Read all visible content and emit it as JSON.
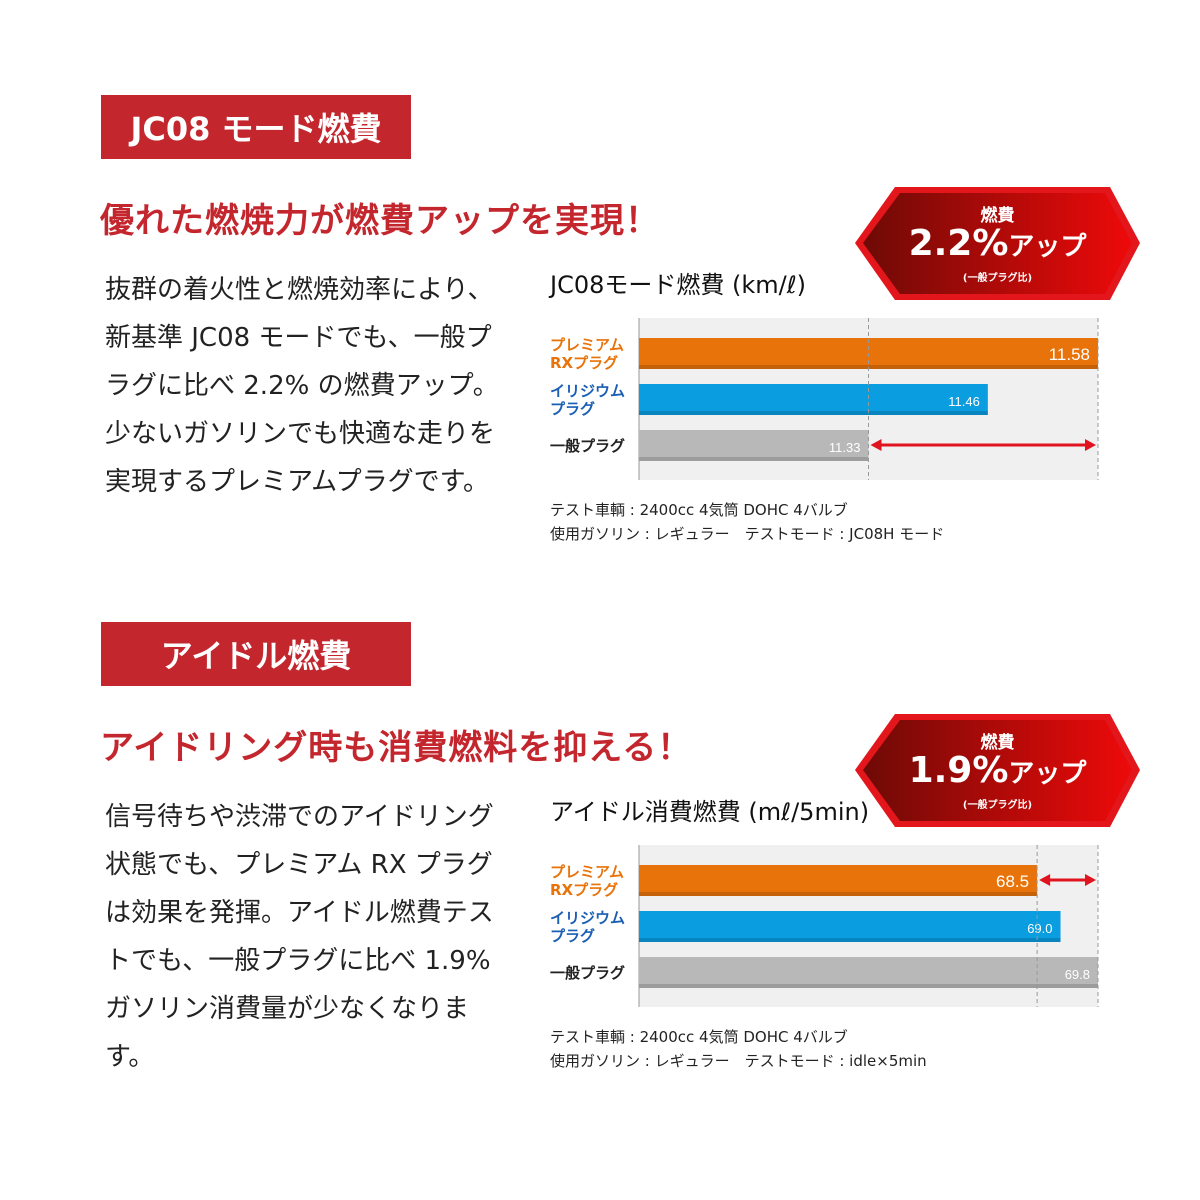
{
  "colors": {
    "accent": "#c4262e",
    "premium": "#e8730a",
    "iridium": "#0a9de0",
    "standard": "#b8b8b8",
    "arrow": "#e0141e"
  },
  "sections": [
    {
      "tag": "JC08 モード燃費",
      "headline": "優れた燃焼力が燃費アップを実現！",
      "body": "抜群の着火性と燃焼効率により、新基準 JC08 モードでも、一般プラグに比べ 2.2% の燃費アップ。少ないガソリンでも快適な走りを実現するプレミアムプラグです。",
      "badge": {
        "top": "燃費",
        "value": "2.2%",
        "suffix": "アップ",
        "sub": "(一般プラグ比)"
      },
      "notes": [
        "テスト車輌 : 2400cc 4気筒 DOHC 4バルブ",
        "使用ガソリン : レギュラー　テストモード : JC08H モード"
      ]
    },
    {
      "tag": "アイドル燃費",
      "headline": "アイドリング時も消費燃料を抑える！",
      "body": "信号待ちや渋滞でのアイドリング状態でも、プレミアム RX プラグは効果を発揮。アイドル燃費テストでも、一般プラグに比べ 1.9% ガソリン消費量が少なくなります。",
      "badge": {
        "top": "燃費",
        "value": "1.9%",
        "suffix": "アップ",
        "sub": "(一般プラグ比)"
      },
      "notes": [
        "テスト車輌 : 2400cc 4気筒 DOHC 4バルブ",
        "使用ガソリン : レギュラー　テストモード : idle×5min"
      ]
    }
  ],
  "chart_data": [
    {
      "type": "bar",
      "orientation": "horizontal",
      "title": "JC08モード燃費 (km/ℓ)",
      "categories": [
        "プレミアム\nRXプラグ",
        "イリジウム\nプラグ",
        "一般プラグ"
      ],
      "values": [
        11.58,
        11.46,
        11.33
      ],
      "labels": [
        "11.58",
        "11.46",
        "11.33"
      ],
      "xlim": [
        11.08,
        11.58
      ],
      "reference": 11.33,
      "arrow": [
        11.33,
        11.58
      ],
      "grid": "dashed reference lines"
    },
    {
      "type": "bar",
      "orientation": "horizontal",
      "title": "アイドル消費燃費 (mℓ/5min)",
      "categories": [
        "プレミアム\nRXプラグ",
        "イリジウム\nプラグ",
        "一般プラグ"
      ],
      "values": [
        68.5,
        69.0,
        69.8
      ],
      "labels": [
        "68.5",
        "69.0",
        "69.8"
      ],
      "xlim": [
        60.0,
        69.8
      ],
      "reference": 68.5,
      "arrow": [
        68.5,
        69.8
      ],
      "grid": "dashed reference lines"
    }
  ]
}
